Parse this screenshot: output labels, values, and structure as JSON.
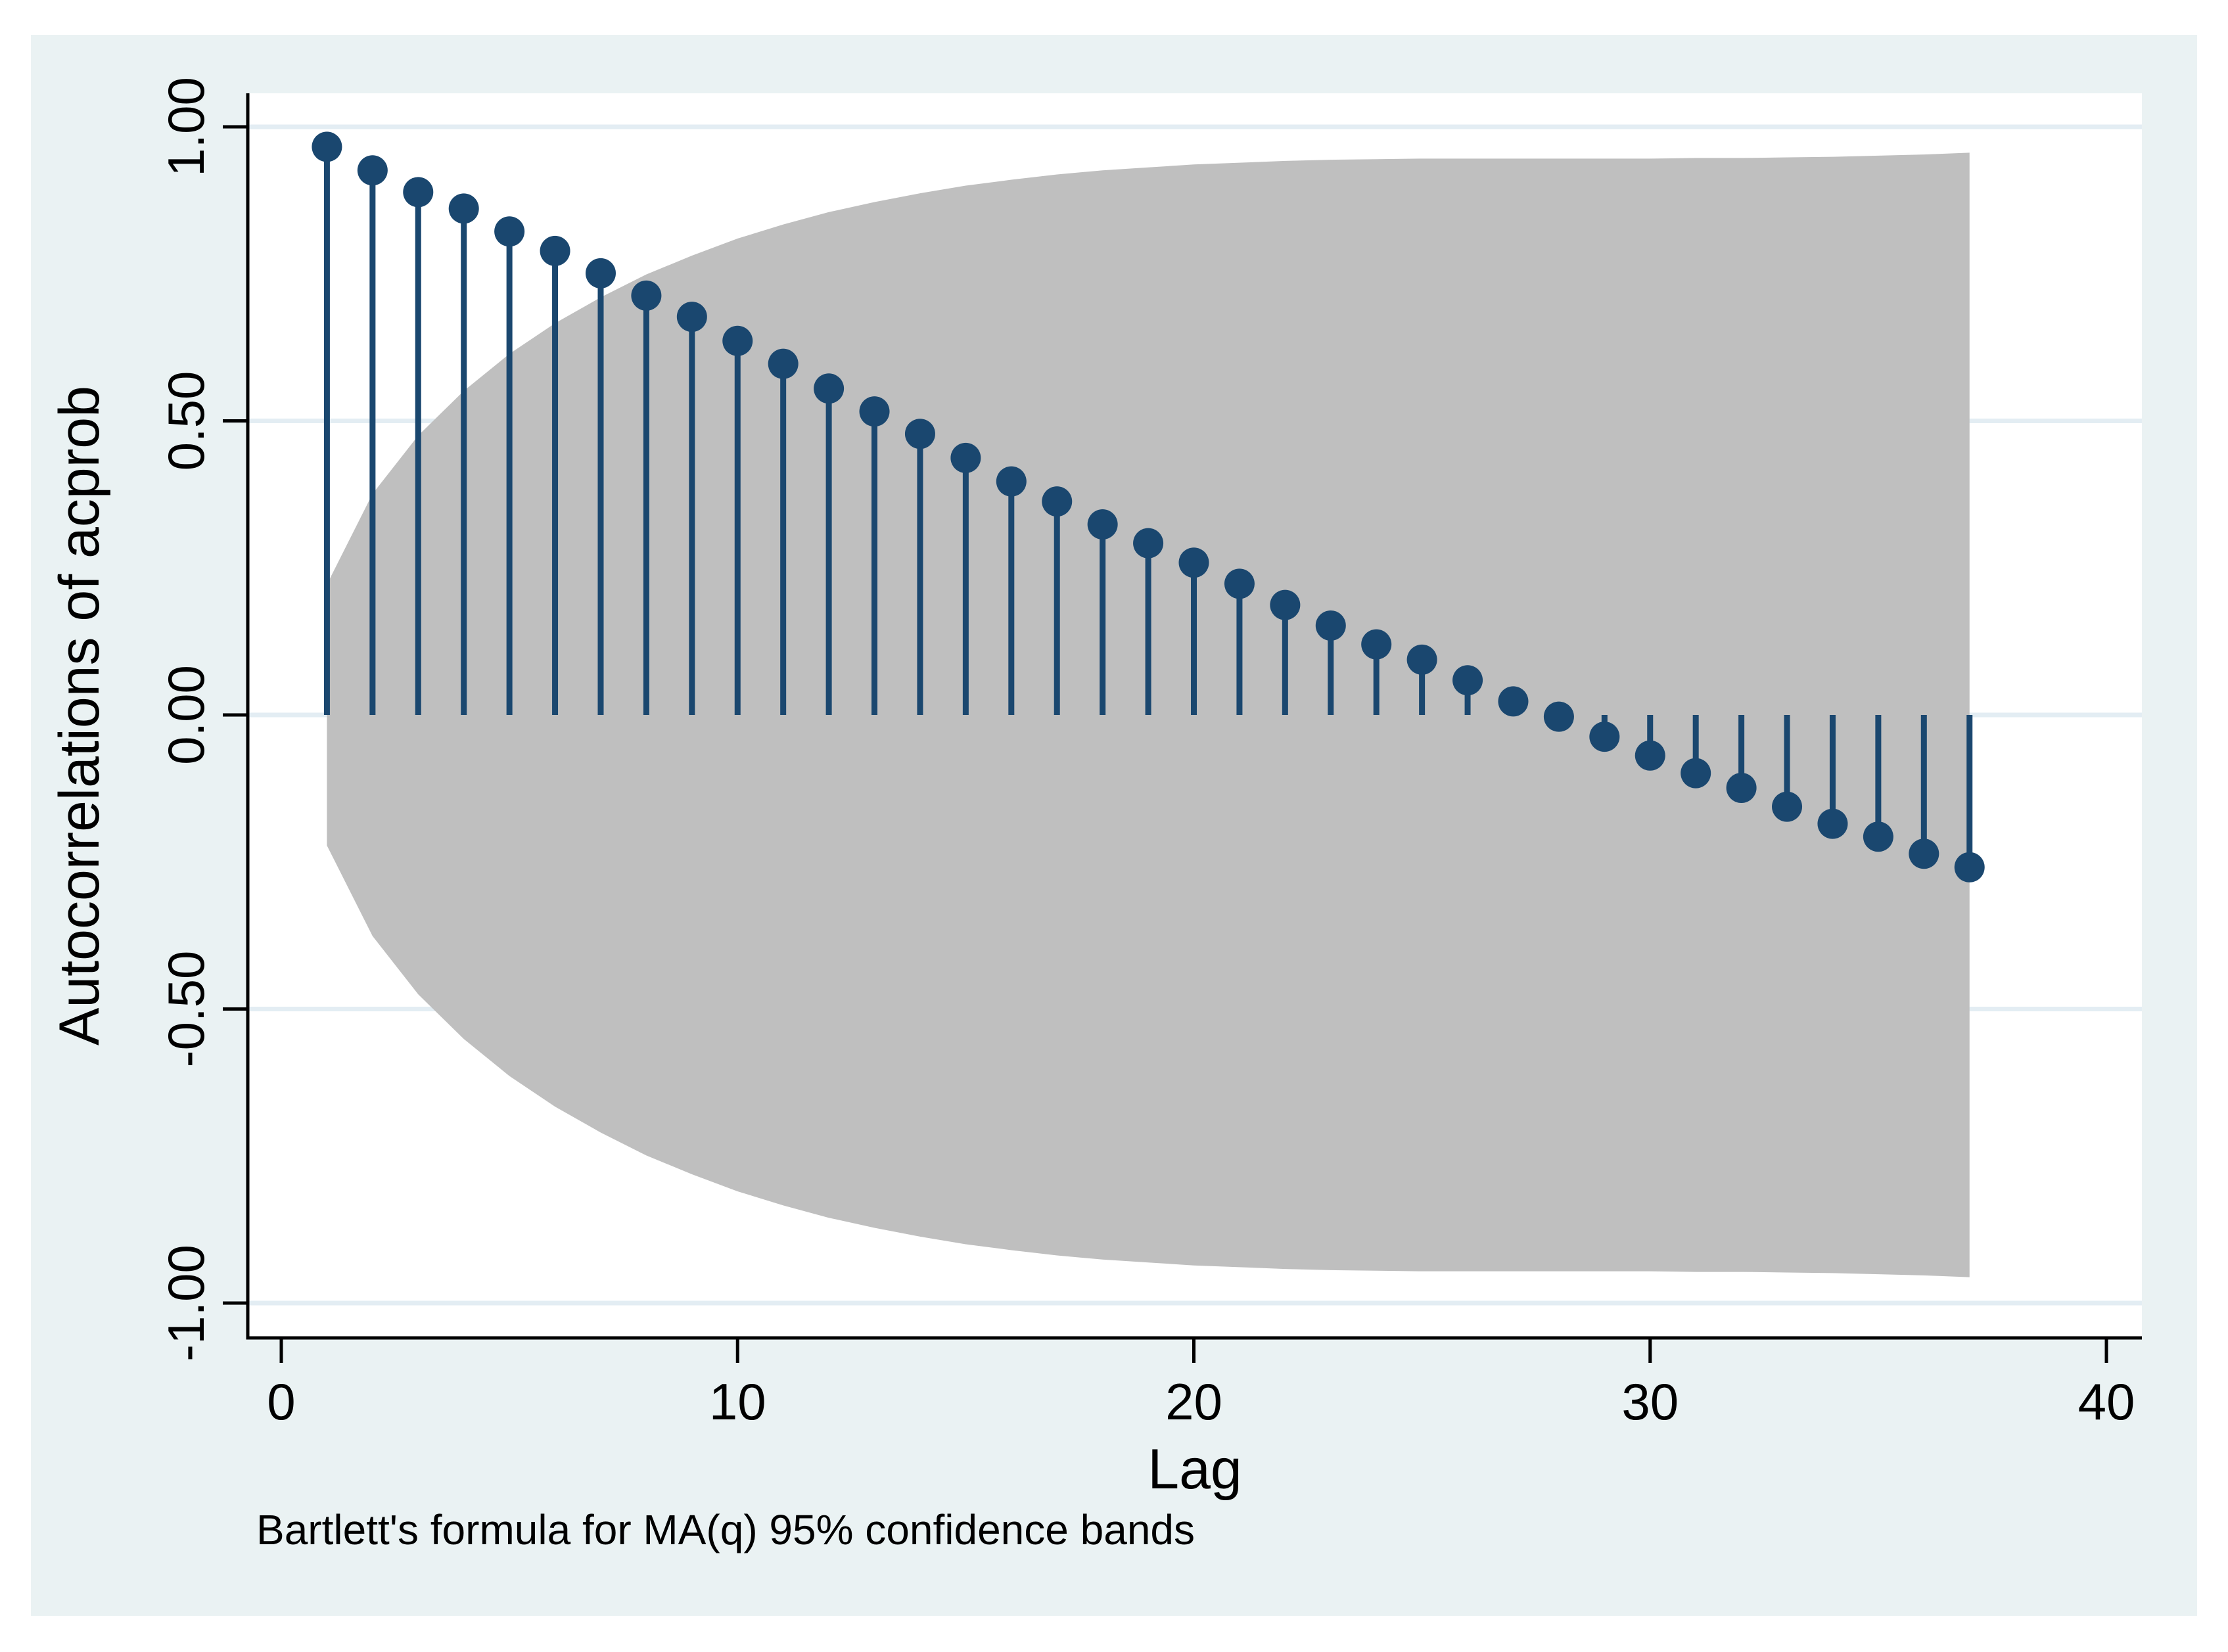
{
  "colors": {
    "page_background": "#ffffff",
    "canvas_background": "#eaf2f3",
    "plot_background": "#ffffff",
    "gridline": "#e3edf3",
    "confidence_band": "#bfbfbf",
    "series": "#1a476f",
    "axis": "#000000",
    "text": "#000000"
  },
  "chart_data": {
    "type": "lollipop",
    "subtype": "autocorrelation-function",
    "title": "",
    "xlabel": "Lag",
    "ylabel": "Autocorrelations of acprob",
    "footnote": "Bartlett's formula for MA(q) 95% confidence bands",
    "xlim": [
      -0.73,
      40.78
    ],
    "ylim": [
      -1.06,
      1.06
    ],
    "grid": "horizontal",
    "legend": "none",
    "x_ticks": [
      {
        "value": 0,
        "label": "0"
      },
      {
        "value": 10,
        "label": "10"
      },
      {
        "value": 20,
        "label": "20"
      },
      {
        "value": 30,
        "label": "30"
      },
      {
        "value": 40,
        "label": "40"
      }
    ],
    "y_ticks": [
      {
        "value": 1.0,
        "label": "1.00"
      },
      {
        "value": 0.5,
        "label": "0.50"
      },
      {
        "value": 0.0,
        "label": "0.00"
      },
      {
        "value": -0.5,
        "label": "-0.50"
      },
      {
        "value": -1.0,
        "label": "-1.00"
      }
    ],
    "lags": [
      1,
      2,
      3,
      4,
      5,
      6,
      7,
      8,
      9,
      10,
      11,
      12,
      13,
      14,
      15,
      16,
      17,
      18,
      19,
      20,
      21,
      22,
      23,
      24,
      25,
      26,
      27,
      28,
      29,
      30,
      31,
      32,
      33,
      34,
      35,
      36,
      37
    ],
    "acf": [
      0.966,
      0.926,
      0.889,
      0.861,
      0.822,
      0.789,
      0.751,
      0.713,
      0.677,
      0.636,
      0.597,
      0.555,
      0.516,
      0.478,
      0.437,
      0.397,
      0.363,
      0.324,
      0.292,
      0.259,
      0.223,
      0.187,
      0.152,
      0.12,
      0.094,
      0.059,
      0.023,
      -0.003,
      -0.037,
      -0.069,
      -0.099,
      -0.124,
      -0.156,
      -0.185,
      -0.207,
      -0.236,
      -0.259
    ],
    "band_upper": [
      0.222,
      0.376,
      0.475,
      0.551,
      0.614,
      0.666,
      0.71,
      0.749,
      0.781,
      0.81,
      0.834,
      0.855,
      0.872,
      0.887,
      0.9,
      0.91,
      0.919,
      0.926,
      0.931,
      0.936,
      0.939,
      0.942,
      0.944,
      0.945,
      0.946,
      0.946,
      0.946,
      0.946,
      0.946,
      0.946,
      0.947,
      0.947,
      0.948,
      0.949,
      0.951,
      0.953,
      0.956
    ],
    "band_symmetric": true,
    "band_meaning": "95% confidence band (Bartlett's formula for MA(q))"
  }
}
